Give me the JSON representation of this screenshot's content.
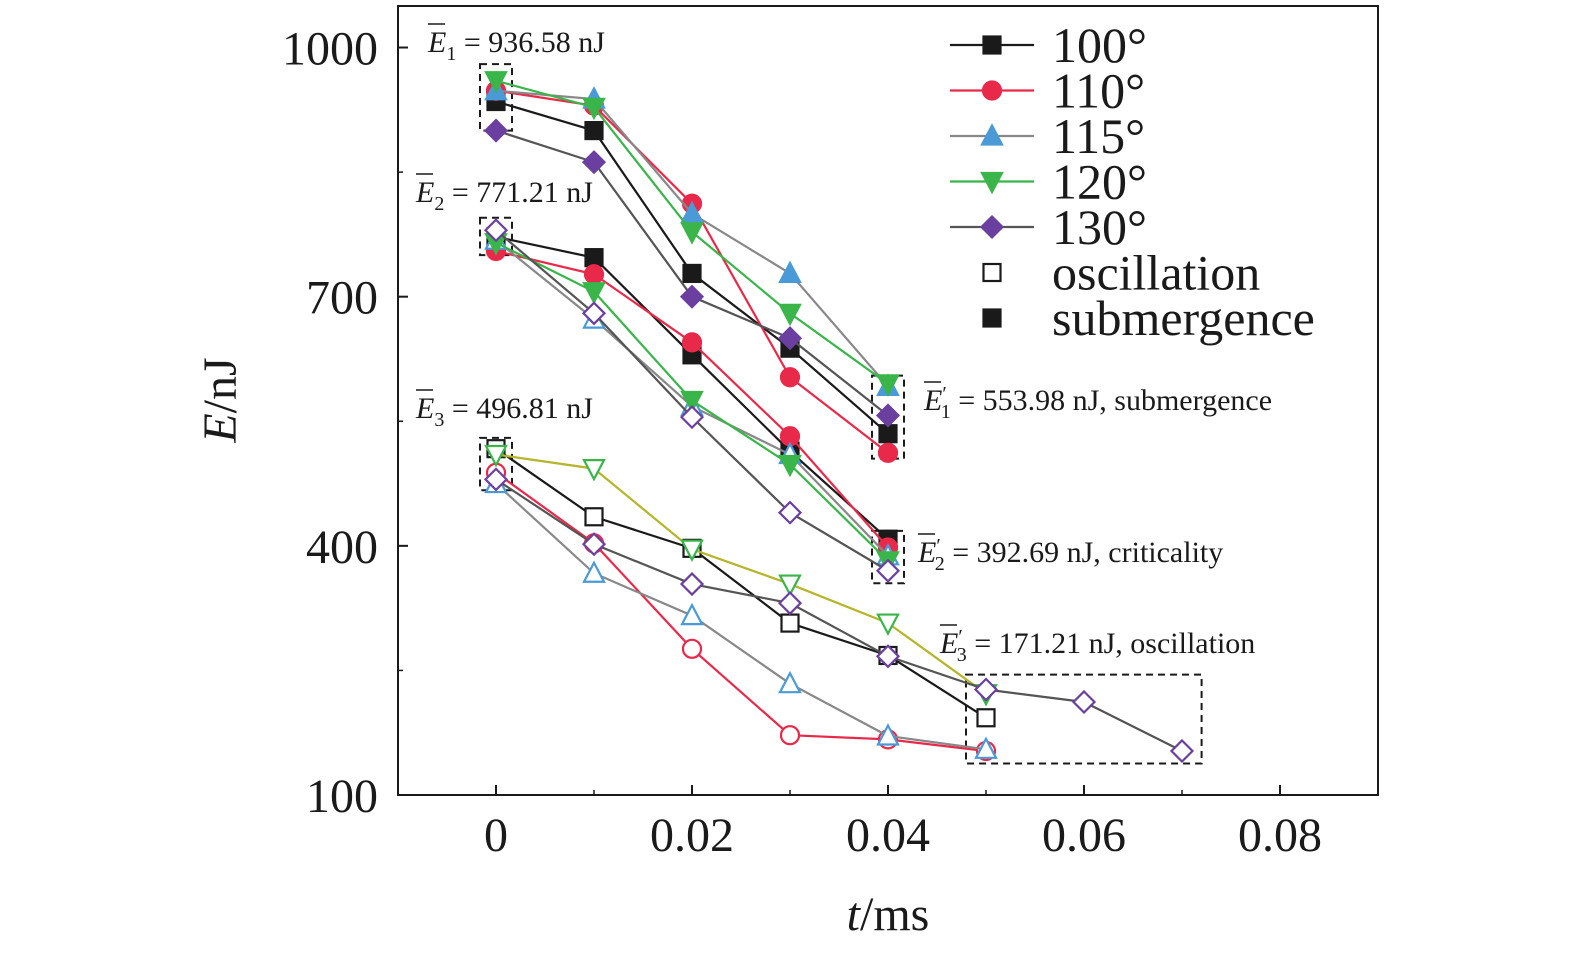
{
  "chart_data": {
    "type": "line",
    "xlabel": {
      "var": "t",
      "unit": "/ms"
    },
    "ylabel": {
      "var": "E",
      "unit": "/nJ"
    },
    "xlim": [
      -0.01,
      0.09
    ],
    "ylim": [
      100,
      1050
    ],
    "xticks": [
      0,
      0.02,
      0.04,
      0.06,
      0.08
    ],
    "xtick_labels": [
      "0",
      "0.02",
      "0.04",
      "0.06",
      "0.08"
    ],
    "yticks": [
      100,
      400,
      700,
      1000
    ],
    "ytick_labels": [
      "100",
      "400",
      "700",
      "1000"
    ],
    "grid": false,
    "legend_position": "top-right",
    "legend": [
      {
        "label": "100°",
        "color": "#1a1a1a",
        "marker": "square"
      },
      {
        "label": "110°",
        "color": "#e8294a",
        "marker": "circle"
      },
      {
        "label": "115°",
        "color": "#4a9ad8",
        "marker": "triangle-up"
      },
      {
        "label": "120°",
        "color": "#39b54a",
        "marker": "triangle-down"
      },
      {
        "label": "130°",
        "color": "#6b3fa0",
        "marker": "diamond"
      },
      {
        "label": "oscillation",
        "color": "#1a1a1a",
        "marker": "square-open"
      },
      {
        "label": "submergence",
        "color": "#1a1a1a",
        "marker": "square"
      }
    ],
    "series": [
      {
        "group": "E1",
        "angle": "100°",
        "color": "#1a1a1a",
        "line": "#1a1a1a",
        "marker": "square",
        "filled": true,
        "x": [
          0,
          0.01,
          0.02,
          0.03,
          0.04
        ],
        "y": [
          935,
          900,
          728,
          638,
          535
        ]
      },
      {
        "group": "E1",
        "angle": "110°",
        "color": "#e8294a",
        "line": "#e8294a",
        "marker": "circle",
        "filled": true,
        "x": [
          0,
          0.01,
          0.02,
          0.03,
          0.04
        ],
        "y": [
          948,
          930,
          812,
          603,
          512
        ]
      },
      {
        "group": "E1",
        "angle": "115°",
        "color": "#4a9ad8",
        "line": "#888888",
        "marker": "triangle-up",
        "filled": true,
        "x": [
          0,
          0.01,
          0.02,
          0.03,
          0.04
        ],
        "y": [
          948,
          938,
          800,
          728,
          592
        ]
      },
      {
        "group": "E1",
        "angle": "120°",
        "color": "#39b54a",
        "line": "#39b54a",
        "marker": "triangle-down",
        "filled": true,
        "x": [
          0,
          0.01,
          0.02,
          0.03,
          0.04
        ],
        "y": [
          960,
          928,
          778,
          680,
          595
        ]
      },
      {
        "group": "E1",
        "angle": "130°",
        "color": "#6b3fa0",
        "line": "#555555",
        "marker": "diamond",
        "filled": true,
        "x": [
          0,
          0.01,
          0.02,
          0.03,
          0.04
        ],
        "y": [
          900,
          862,
          700,
          650,
          557
        ]
      },
      {
        "group": "E2",
        "angle": "100°",
        "color": "#1a1a1a",
        "line": "#1a1a1a",
        "marker": "square",
        "filled": true,
        "x": [
          0,
          0.01,
          0.02,
          0.03,
          0.04
        ],
        "y": [
          772,
          747,
          630,
          514,
          408
        ]
      },
      {
        "group": "E2",
        "angle": "110°",
        "color": "#e8294a",
        "line": "#e8294a",
        "marker": "circle",
        "filled": true,
        "x": [
          0,
          0.01,
          0.02,
          0.03,
          0.04
        ],
        "y": [
          755,
          727,
          645,
          532,
          398
        ]
      },
      {
        "group": "E2",
        "angle": "115°",
        "color": "#4a9ad8",
        "line": "#888888",
        "marker": "triangle-up",
        "filled": false,
        "x": [
          0,
          0.01,
          0.02,
          0.03,
          0.04
        ],
        "y": [
          768,
          673,
          568,
          510,
          388
        ]
      },
      {
        "group": "E2",
        "angle": "120°",
        "color": "#39b54a",
        "line": "#39b54a",
        "marker": "triangle-down",
        "filled": true,
        "x": [
          0,
          0.01,
          0.02,
          0.03,
          0.04
        ],
        "y": [
          765,
          706,
          575,
          498,
          382
        ]
      },
      {
        "group": "E2",
        "angle": "130°",
        "color": "#6b3fa0",
        "line": "#555555",
        "marker": "diamond",
        "filled": false,
        "x": [
          0,
          0.01,
          0.02,
          0.03,
          0.04
        ],
        "y": [
          780,
          680,
          555,
          440,
          370
        ]
      },
      {
        "group": "E3",
        "angle": "100°",
        "color": "#1a1a1a",
        "line": "#1a1a1a",
        "marker": "square",
        "filled": false,
        "x": [
          0,
          0.01,
          0.02,
          0.03,
          0.04,
          0.05
        ],
        "y": [
          517,
          435,
          397,
          307,
          268,
          193
        ]
      },
      {
        "group": "E3",
        "angle": "110°",
        "color": "#e8294a",
        "line": "#e8294a",
        "marker": "circle",
        "filled": false,
        "x": [
          0,
          0.01,
          0.02,
          0.03,
          0.04,
          0.05
        ],
        "y": [
          488,
          403,
          276,
          172,
          167,
          153
        ]
      },
      {
        "group": "E3",
        "angle": "115°",
        "color": "#4a9ad8",
        "line": "#888888",
        "marker": "triangle-up",
        "filled": false,
        "x": [
          0,
          0.01,
          0.02,
          0.03,
          0.04,
          0.05
        ],
        "y": [
          475,
          367,
          316,
          234,
          171,
          155
        ]
      },
      {
        "group": "E3",
        "angle": "120°",
        "color": "#39b54a",
        "line": "#b5b52a",
        "marker": "triangle-down",
        "filled": false,
        "x": [
          0,
          0.01,
          0.02,
          0.03,
          0.04,
          0.05
        ],
        "y": [
          510,
          493,
          396,
          354,
          307,
          222
        ]
      },
      {
        "group": "E3",
        "angle": "130°",
        "color": "#6b3fa0",
        "line": "#555555",
        "marker": "diamond",
        "filled": false,
        "x": [
          0,
          0.01,
          0.02,
          0.03,
          0.04,
          0.05,
          0.06,
          0.07
        ],
        "y": [
          480,
          402,
          354,
          331,
          267,
          227,
          212,
          153
        ]
      }
    ],
    "annotations": [
      {
        "sym": "E",
        "sub": "1",
        "prime": false,
        "text": " = 936.58 nJ"
      },
      {
        "sym": "E",
        "sub": "2",
        "prime": false,
        "text": " = 771.21 nJ"
      },
      {
        "sym": "E",
        "sub": "3",
        "prime": false,
        "text": " = 496.81 nJ"
      },
      {
        "sym": "E",
        "sub": "1",
        "prime": true,
        "text": " = 553.98 nJ, submergence"
      },
      {
        "sym": "E",
        "sub": "2",
        "prime": true,
        "text": " = 392.69 nJ, criticality"
      },
      {
        "sym": "E",
        "sub": "3",
        "prime": true,
        "text": " = 171.21 nJ, oscillation"
      }
    ]
  }
}
